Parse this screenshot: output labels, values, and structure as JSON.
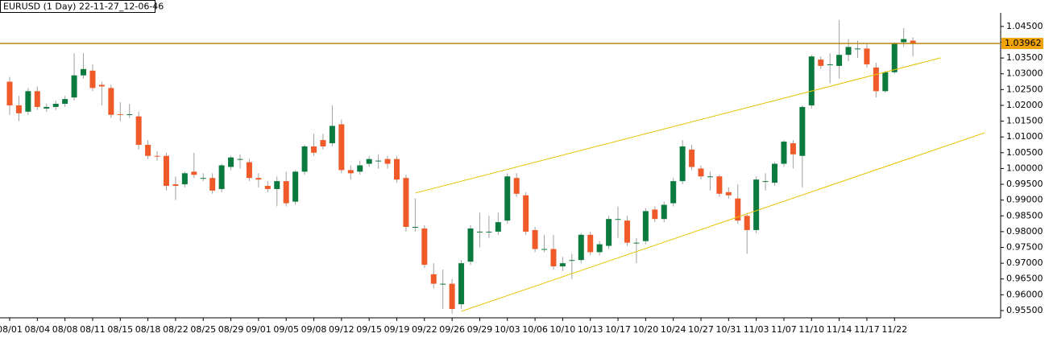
{
  "chart_data": {
    "type": "candlestick",
    "title": "EURUSD (1 Day) 22-11-27_12-06-46",
    "categories": [
      "08/01",
      null,
      null,
      "08/04",
      null,
      null,
      "08/08",
      null,
      null,
      "08/11",
      null,
      null,
      "08/15",
      null,
      null,
      "08/18",
      null,
      null,
      "08/22",
      null,
      null,
      "08/25",
      null,
      null,
      "08/29",
      null,
      null,
      "09/01",
      null,
      null,
      "09/05",
      null,
      null,
      "09/08",
      null,
      null,
      "09/12",
      null,
      null,
      "09/15",
      null,
      null,
      "09/19",
      null,
      null,
      "09/22",
      null,
      null,
      "09/26",
      null,
      null,
      "09/29",
      null,
      null,
      "10/03",
      null,
      null,
      "10/06",
      null,
      null,
      "10/10",
      null,
      null,
      "10/13",
      null,
      null,
      "10/17",
      null,
      null,
      "10/20",
      null,
      null,
      "10/24",
      null,
      null,
      "10/27",
      null,
      null,
      "10/31",
      null,
      null,
      "11/03",
      null,
      null,
      "11/07",
      null,
      null,
      "11/10",
      null,
      null,
      "11/14",
      null,
      null,
      "11/17",
      null,
      null,
      "11/22",
      null,
      null
    ],
    "open": [
      1.0275,
      1.02,
      1.018,
      1.0245,
      1.019,
      1.0195,
      1.0205,
      1.0225,
      1.0295,
      1.031,
      1.0265,
      1.0255,
      1.0172,
      1.017,
      1.0165,
      1.0075,
      1.004,
      1.004,
      0.995,
      0.995,
      0.999,
      0.997,
      0.997,
      0.9935,
      1.0005,
      1.003,
      1.002,
      0.997,
      0.9945,
      0.9935,
      0.996,
      0.9895,
      0.999,
      1.007,
      1.009,
      1.008,
      1.014,
      0.9995,
      0.999,
      1.0015,
      1.0025,
      1.003,
      1.003,
      0.997,
      0.9815,
      0.981,
      0.9665,
      0.9635,
      0.9635,
      0.957,
      0.9705,
      0.98,
      0.98,
      0.98,
      0.9835,
      0.997,
      0.9915,
      0.9805,
      0.9745,
      0.9745,
      0.969,
      0.971,
      0.971,
      0.979,
      0.9735,
      0.9755,
      0.984,
      0.9835,
      0.9765,
      0.977,
      0.987,
      0.984,
      0.989,
      0.996,
      1.006,
      1.0,
      0.9975,
      0.9975,
      0.9925,
      0.9905,
      0.985,
      0.9805,
      0.996,
      0.9955,
      1.0015,
      1.008,
      1.004,
      1.02,
      1.0345,
      1.033,
      1.0325,
      1.036,
      1.038,
      1.038,
      1.032,
      1.0245,
      1.0305,
      1.04,
      1.0405
    ],
    "high": [
      1.029,
      1.023,
      1.0255,
      1.026,
      1.0205,
      1.0215,
      1.023,
      1.0365,
      1.0365,
      1.033,
      1.0275,
      1.0265,
      1.021,
      1.0205,
      1.018,
      1.009,
      1.0055,
      1.005,
      0.9975,
      0.999,
      1.005,
      0.9985,
      0.9985,
      1.0015,
      1.004,
      1.0045,
      1.003,
      0.9985,
      0.996,
      0.9975,
      0.999,
      0.9995,
      1.0075,
      1.011,
      1.011,
      1.02,
      1.0155,
      1.001,
      1.0025,
      1.004,
      1.0045,
      1.004,
      1.004,
      0.998,
      0.9905,
      0.982,
      0.97,
      0.968,
      0.965,
      0.971,
      0.982,
      0.986,
      0.985,
      0.986,
      0.9985,
      0.9985,
      0.9925,
      0.9815,
      0.979,
      0.979,
      0.972,
      0.973,
      0.9795,
      0.98,
      0.977,
      0.985,
      0.988,
      0.985,
      0.978,
      0.9875,
      0.988,
      0.9895,
      0.997,
      1.009,
      1.0075,
      1.001,
      0.999,
      0.998,
      0.994,
      0.995,
      0.986,
      0.9975,
      0.9985,
      1.002,
      1.009,
      1.009,
      1.02,
      1.036,
      1.0355,
      1.0365,
      1.047,
      1.041,
      1.0405,
      1.0395,
      1.0335,
      1.031,
      1.04,
      1.0445,
      1.0415
    ],
    "low": [
      1.017,
      1.015,
      1.017,
      1.0185,
      1.018,
      1.0185,
      1.0195,
      1.0215,
      1.0285,
      1.0245,
      1.02,
      1.016,
      1.015,
      1.016,
      1.006,
      1.003,
      1.0025,
      0.993,
      0.99,
      0.994,
      0.997,
      0.996,
      0.992,
      0.9925,
      0.9995,
      1.0,
      0.996,
      0.994,
      0.9925,
      0.988,
      0.988,
      0.9885,
      0.998,
      1.004,
      1.006,
      1.007,
      0.9985,
      0.9965,
      0.998,
      1.0005,
      1.0,
      1.0,
      0.9955,
      0.98,
      0.98,
      0.9685,
      0.962,
      0.9555,
      0.954,
      0.9555,
      0.9695,
      0.975,
      0.978,
      0.979,
      0.9825,
      0.991,
      0.979,
      0.9735,
      0.9735,
      0.968,
      0.9675,
      0.965,
      0.97,
      0.9725,
      0.9725,
      0.9745,
      0.978,
      0.9755,
      0.97,
      0.976,
      0.983,
      0.983,
      0.988,
      0.995,
      0.9995,
      0.9965,
      0.993,
      0.991,
      0.9905,
      0.9825,
      0.973,
      0.9795,
      0.993,
      0.9945,
      1.0005,
      1.0,
      0.994,
      1.019,
      1.0315,
      1.027,
      1.0285,
      1.034,
      1.035,
      1.032,
      1.0225,
      1.024,
      1.03,
      1.0385,
      1.0355
    ],
    "close": [
      1.02,
      1.0175,
      1.0245,
      1.0195,
      1.0195,
      1.0205,
      1.022,
      1.0295,
      1.0315,
      1.0255,
      1.026,
      1.017,
      1.017,
      1.0172,
      1.0075,
      1.004,
      1.0038,
      0.9945,
      0.9945,
      0.9985,
      0.998,
      0.997,
      0.993,
      1.001,
      1.0035,
      1.003,
      0.997,
      0.9965,
      0.9935,
      0.996,
      0.989,
      0.999,
      1.007,
      1.005,
      1.007,
      1.0135,
      0.9995,
      0.9985,
      1.001,
      1.003,
      1.0025,
      1.0015,
      0.9965,
      0.9815,
      0.9815,
      0.9695,
      0.9635,
      0.9635,
      0.9555,
      0.97,
      0.981,
      0.98,
      0.98,
      0.983,
      0.9975,
      0.992,
      0.98,
      0.9745,
      0.9745,
      0.969,
      0.97,
      0.971,
      0.979,
      0.9735,
      0.976,
      0.984,
      0.984,
      0.9765,
      0.9765,
      0.9865,
      0.984,
      0.9885,
      0.996,
      1.007,
      1.0005,
      0.9975,
      0.9975,
      0.992,
      0.9915,
      0.9835,
      0.9805,
      0.9965,
      0.996,
      1.0015,
      1.0085,
      1.0045,
      1.0195,
      1.0355,
      1.0325,
      1.033,
      1.036,
      1.0385,
      1.038,
      1.033,
      1.0245,
      1.0305,
      1.0395,
      1.041,
      1.03962
    ],
    "up_color": "#0b7a3e",
    "down_color": "#f05a28",
    "current_price": 1.03962,
    "current_price_color": "#b8860b",
    "trendlines": [
      {
        "x": [
          44,
          101
        ],
        "y": [
          0.99222,
          1.03505
        ],
        "color": "#e6c200"
      },
      {
        "x": [
          49,
          105.8
        ],
        "y": [
          0.95475,
          1.01134
        ],
        "color": "#e6c200"
      }
    ],
    "ylim": [
      0.9527,
      1.0493
    ],
    "yticks": [
      {
        "value": 0.955,
        "label": "0.95500"
      },
      {
        "value": 0.96,
        "label": "0.96000"
      },
      {
        "value": 0.965,
        "label": "0.96500"
      },
      {
        "value": 0.97,
        "label": "0.97000"
      },
      {
        "value": 0.975,
        "label": "0.97500"
      },
      {
        "value": 0.98,
        "label": "0.98000"
      },
      {
        "value": 0.985,
        "label": "0.98500"
      },
      {
        "value": 0.99,
        "label": "0.99000"
      },
      {
        "value": 0.995,
        "label": "0.99500"
      },
      {
        "value": 1.0,
        "label": "1.00000"
      },
      {
        "value": 1.005,
        "label": "1.00500"
      },
      {
        "value": 1.01,
        "label": "1.01000"
      },
      {
        "value": 1.015,
        "label": "1.01500"
      },
      {
        "value": 1.02,
        "label": "1.02000"
      },
      {
        "value": 1.025,
        "label": "1.02500"
      },
      {
        "value": 1.03,
        "label": "1.03000"
      },
      {
        "value": 1.035,
        "label": "1.03500"
      },
      {
        "value": 1.04,
        "label": "1.04000"
      },
      {
        "value": 1.045,
        "label": "1.04500"
      }
    ]
  }
}
